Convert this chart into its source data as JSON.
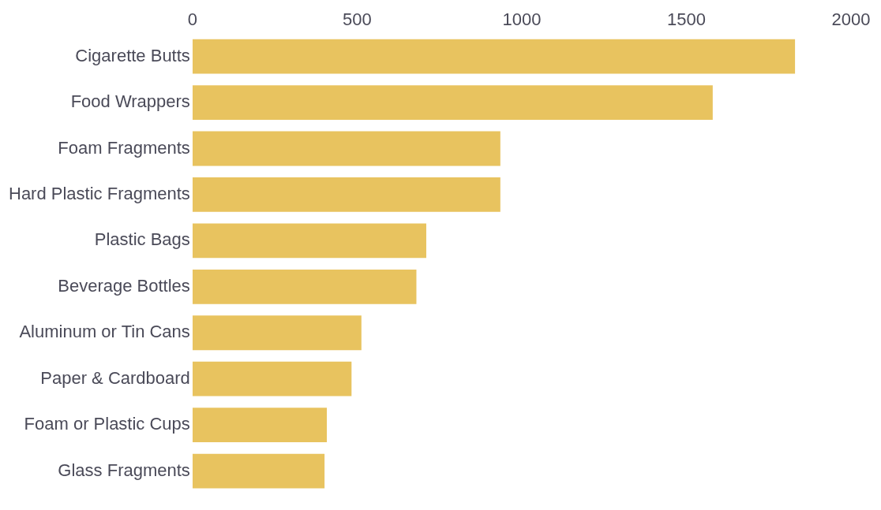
{
  "chart_data": {
    "type": "bar",
    "orientation": "horizontal",
    "categories": [
      "Cigarette Butts",
      "Food Wrappers",
      "Foam Fragments",
      "Hard Plastic Fragments",
      "Plastic Bags",
      "Beverage Bottles",
      "Aluminum or Tin Cans",
      "Paper & Cardboard",
      "Foam or Plastic Cups",
      "Glass Fragments"
    ],
    "values": [
      1830,
      1580,
      935,
      935,
      710,
      680,
      513,
      483,
      408,
      401
    ],
    "color": "#e8c35f",
    "xlim": [
      0,
      2000
    ],
    "xticks": [
      0,
      500,
      1000,
      1500,
      2000
    ],
    "grid": false,
    "legend": false
  }
}
